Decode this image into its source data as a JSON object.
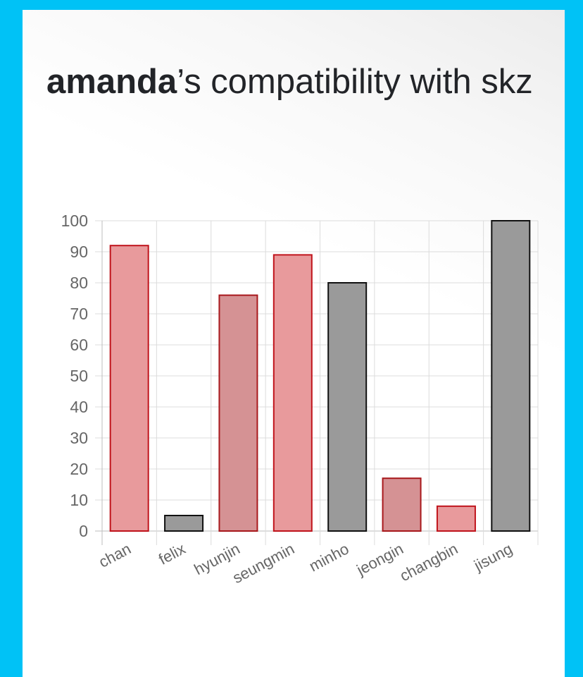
{
  "header": {
    "name": "amanda",
    "rest": "’s compatibility with skz"
  },
  "colors": {
    "background": "#00c2f6",
    "pink_fill": "#e89a9c",
    "pink_stroke": "#c0141c",
    "rose_fill": "#d59294",
    "rose_stroke": "#a8181c",
    "gray_fill": "#9a9a9a",
    "gray_stroke": "#111111"
  },
  "chart_data": {
    "type": "bar",
    "title": "",
    "xlabel": "",
    "ylabel": "",
    "categories": [
      "chan",
      "felix",
      "hyunjin",
      "seungmin",
      "minho",
      "jeongin",
      "changbin",
      "jisung"
    ],
    "values": [
      92,
      5,
      76,
      89,
      80,
      17,
      8,
      100
    ],
    "bar_colors": [
      "pink",
      "gray",
      "rose",
      "pink",
      "gray",
      "rose",
      "pink",
      "gray"
    ],
    "ylim": [
      0,
      100
    ],
    "yticks": [
      0,
      10,
      20,
      30,
      40,
      50,
      60,
      70,
      80,
      90,
      100
    ],
    "grid": true,
    "legend": "none"
  }
}
